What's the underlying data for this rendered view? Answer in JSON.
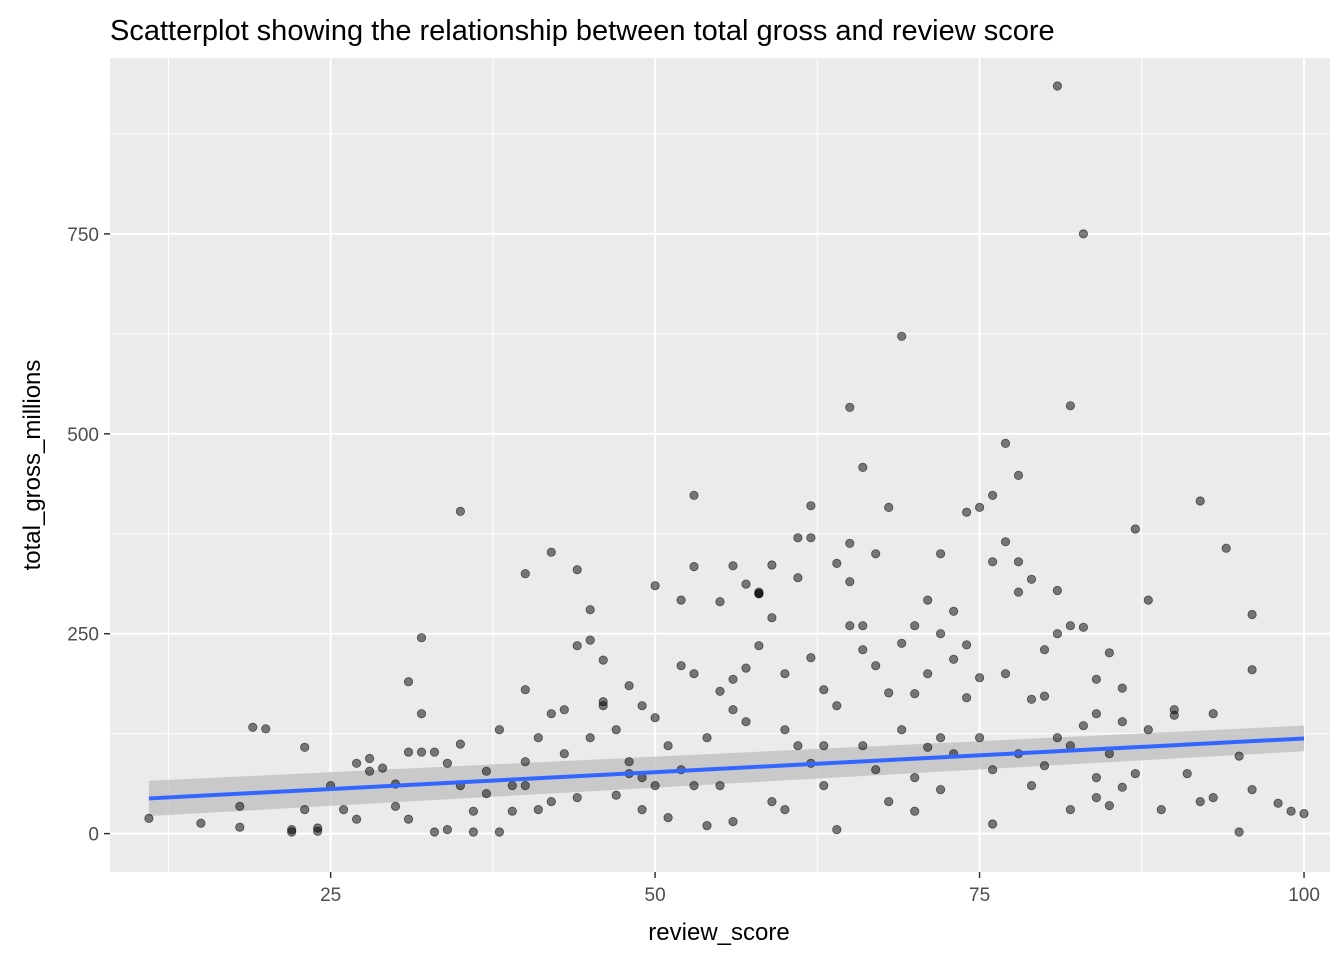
{
  "chart_data": {
    "type": "scatter",
    "title": "Scatterplot showing the relationship between total gross and review score",
    "xlabel": "review_score",
    "ylabel": "total_gross_millions",
    "xlim": [
      8,
      102
    ],
    "ylim": [
      -48,
      970
    ],
    "x_ticks": [
      25,
      50,
      75,
      100
    ],
    "y_ticks": [
      0,
      250,
      500,
      750
    ],
    "grid": true,
    "legend": "none",
    "colors": {
      "panel": "#ebebeb",
      "grid": "#ffffff",
      "point": "#000000",
      "trend_line": "#3366ff",
      "ribbon": "#bdbdbd"
    },
    "trend": {
      "method": "linear",
      "x": [
        11,
        100
      ],
      "y": [
        44,
        119
      ],
      "ci_halfwidth": [
        22,
        16
      ]
    },
    "x": [
      11,
      15,
      18,
      18,
      19,
      20,
      22,
      22,
      23,
      23,
      24,
      24,
      25,
      26,
      27,
      27,
      28,
      28,
      29,
      30,
      30,
      31,
      31,
      31,
      32,
      32,
      32,
      33,
      33,
      34,
      34,
      35,
      35,
      35,
      36,
      36,
      37,
      37,
      38,
      38,
      39,
      39,
      40,
      40,
      40,
      41,
      41,
      42,
      42,
      42,
      43,
      43,
      44,
      44,
      45,
      45,
      45,
      46,
      46,
      47,
      47,
      48,
      48,
      48,
      49,
      49,
      50,
      50,
      50,
      51,
      51,
      52,
      52,
      52,
      53,
      53,
      53,
      54,
      54,
      55,
      55,
      55,
      56,
      56,
      56,
      57,
      57,
      57,
      58,
      58,
      58,
      59,
      59,
      59,
      60,
      60,
      60,
      61,
      61,
      61,
      62,
      62,
      62,
      63,
      63,
      63,
      64,
      64,
      64,
      65,
      65,
      65,
      65,
      66,
      66,
      66,
      67,
      67,
      67,
      68,
      68,
      68,
      69,
      69,
      69,
      70,
      70,
      70,
      71,
      71,
      71,
      72,
      72,
      72,
      73,
      73,
      73,
      74,
      74,
      74,
      75,
      75,
      75,
      76,
      76,
      76,
      77,
      77,
      77,
      78,
      78,
      78,
      79,
      79,
      79,
      80,
      80,
      80,
      81,
      81,
      81,
      81,
      82,
      82,
      82,
      83,
      83,
      83,
      84,
      84,
      84,
      85,
      85,
      85,
      86,
      86,
      86,
      87,
      87,
      88,
      88,
      89,
      90,
      90,
      91,
      92,
      92,
      93,
      93,
      94,
      95,
      95,
      96,
      96,
      96,
      98,
      99,
      100,
      40,
      44,
      46,
      49,
      53,
      56,
      58,
      62,
      66,
      70,
      72,
      76,
      78,
      82,
      84
    ],
    "y": [
      19,
      13,
      34,
      8,
      133,
      131,
      2,
      5,
      108,
      30,
      3,
      7,
      60,
      30,
      88,
      18,
      94,
      78,
      82,
      62,
      34,
      102,
      190,
      18,
      245,
      150,
      102,
      102,
      2,
      88,
      5,
      403,
      112,
      60,
      28,
      2,
      78,
      50,
      130,
      2,
      60,
      28,
      325,
      180,
      90,
      120,
      30,
      352,
      150,
      40,
      155,
      100,
      330,
      235,
      280,
      242,
      120,
      217,
      160,
      48,
      130,
      75,
      90,
      185,
      160,
      30,
      310,
      145,
      60,
      110,
      20,
      292,
      210,
      80,
      423,
      334,
      200,
      120,
      10,
      290,
      178,
      60,
      335,
      193,
      15,
      312,
      207,
      140,
      302,
      300,
      235,
      336,
      270,
      40,
      200,
      130,
      30,
      370,
      320,
      110,
      410,
      370,
      220,
      180,
      110,
      60,
      338,
      160,
      5,
      533,
      363,
      315,
      260,
      458,
      260,
      110,
      350,
      210,
      80,
      408,
      176,
      40,
      622,
      238,
      130,
      260,
      175,
      70,
      292,
      200,
      108,
      350,
      250,
      120,
      278,
      218,
      100,
      402,
      236,
      170,
      408,
      195,
      120,
      423,
      340,
      80,
      488,
      365,
      200,
      448,
      340,
      302,
      318,
      168,
      60,
      230,
      172,
      85,
      935,
      304,
      250,
      120,
      535,
      260,
      110,
      750,
      258,
      135,
      193,
      150,
      45,
      226,
      100,
      35,
      182,
      140,
      58,
      381,
      75,
      292,
      130,
      30,
      155,
      148,
      75,
      416,
      40,
      150,
      45,
      357,
      97,
      2,
      274,
      205,
      55,
      38,
      28,
      25,
      60,
      45,
      165,
      70,
      60,
      155,
      300,
      88,
      230,
      28,
      55,
      12,
      100,
      30,
      70
    ]
  }
}
